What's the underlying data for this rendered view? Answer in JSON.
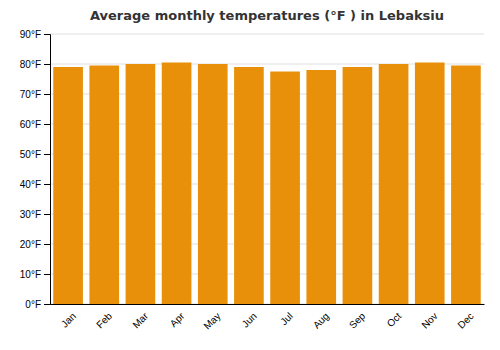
{
  "chart_data": {
    "type": "bar",
    "title": "Average monthly temperatures (°F ) in Lebaksiu",
    "categories": [
      "Jan",
      "Feb",
      "Mar",
      "Apr",
      "May",
      "Jun",
      "Jul",
      "Aug",
      "Sep",
      "Oct",
      "Nov",
      "Dec"
    ],
    "values": [
      79.0,
      79.5,
      80.0,
      80.5,
      80.0,
      79.0,
      77.5,
      78.0,
      79.0,
      80.0,
      80.5,
      79.5
    ],
    "color": "#E8900A",
    "ylim": [
      0,
      90
    ],
    "yticks": [
      {
        "value": 0,
        "label": "0°F"
      },
      {
        "value": 10,
        "label": "10°F"
      },
      {
        "value": 20,
        "label": "20°F"
      },
      {
        "value": 30,
        "label": "30°F"
      },
      {
        "value": 40,
        "label": "40°F"
      },
      {
        "value": 50,
        "label": "50°F"
      },
      {
        "value": 60,
        "label": "60°F"
      },
      {
        "value": 70,
        "label": "70°F"
      },
      {
        "value": 80,
        "label": "80°F"
      },
      {
        "value": 90,
        "label": "90°F"
      }
    ],
    "grid": true
  }
}
